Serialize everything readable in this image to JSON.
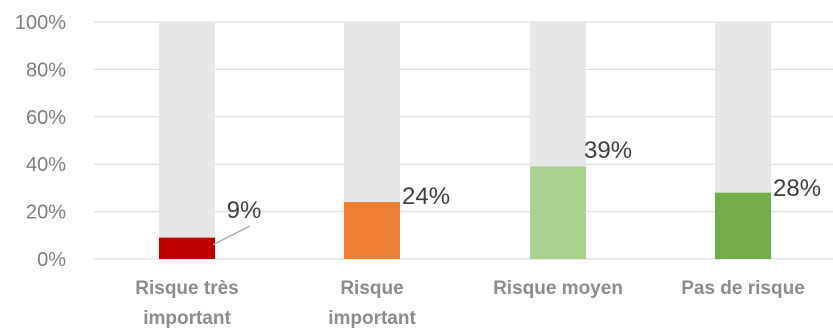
{
  "chart_data": {
    "type": "bar",
    "categories": [
      [
        "Risque très",
        "important"
      ],
      [
        "Risque",
        "important"
      ],
      [
        "Risque moyen"
      ],
      [
        "Pas de risque"
      ]
    ],
    "values": [
      9,
      24,
      39,
      28
    ],
    "background_value": 100,
    "data_labels": [
      "9%",
      "24%",
      "39%",
      "28%"
    ],
    "ylim": [
      0,
      100
    ],
    "yticks": [
      0,
      20,
      40,
      60,
      80,
      100
    ],
    "ytick_labels": [
      "0%",
      "20%",
      "40%",
      "60%",
      "80%",
      "100%"
    ],
    "grid": true,
    "colors": {
      "bars": [
        "#c00000",
        "#ed7d31",
        "#a9d18e",
        "#70ad47"
      ],
      "background_bar": "#e6e6e6",
      "grid": "#d9d9d9",
      "leader_line": "#a6a6a6"
    }
  }
}
